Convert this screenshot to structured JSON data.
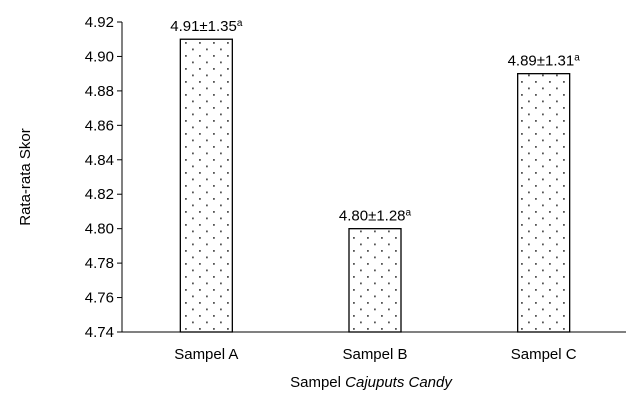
{
  "chart_data": {
    "type": "bar",
    "categories": [
      "Sampel A",
      "Sampel B",
      "Sampel C"
    ],
    "values": [
      4.91,
      4.8,
      4.89
    ],
    "data_labels": [
      {
        "main": "4.91±1.35",
        "sup": "a"
      },
      {
        "main": "4.80±1.28",
        "sup": "a"
      },
      {
        "main": "4.89±1.31",
        "sup": "a"
      }
    ],
    "ylabel": "Rata-rata Skor",
    "xlabel_prefix": "Sampel ",
    "xlabel_italic": "Cajuputs Candy",
    "ylim": [
      4.74,
      4.92
    ],
    "yticks": [
      "4.74",
      "4.76",
      "4.78",
      "4.80",
      "4.82",
      "4.84",
      "4.86",
      "4.88",
      "4.90",
      "4.92"
    ],
    "bar_fill": "dotted pattern",
    "grid": false,
    "legend": "none"
  }
}
